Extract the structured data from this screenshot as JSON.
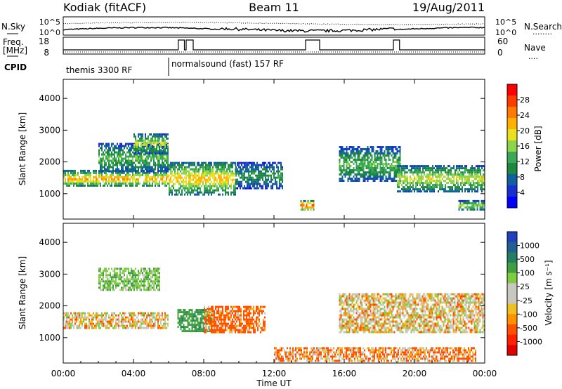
{
  "header": {
    "station": "Kodiak (fitACF)",
    "beam": "Beam 11",
    "date": "19/Aug/2011"
  },
  "summary_panels": {
    "nsky": {
      "label": "N.Sky",
      "ticks": [
        "10^5",
        "10^0"
      ],
      "right_label": "N.Search",
      "right_ticks": [
        "10^5",
        "10^0"
      ],
      "right_legend": "........"
    },
    "freq": {
      "label_line1": "Freq.",
      "label_line2": "[MHz]",
      "ticks": [
        "18",
        "8"
      ],
      "right_label": "Nave",
      "right_ticks": [
        "60",
        "0"
      ],
      "right_legend": "....",
      "pulse_hours": [
        [
          6.55,
          6.9
        ],
        [
          7.0,
          7.4
        ],
        [
          13.8,
          14.6
        ],
        [
          18.8,
          19.15
        ]
      ]
    },
    "cpid": {
      "label": "CPID",
      "modes": [
        {
          "text": "themis 3300 RF",
          "start_hour": 0
        },
        {
          "text": "normalsound (fast) 157 RF",
          "start_hour": 6
        }
      ]
    }
  },
  "chart_data": [
    {
      "type": "heatmap",
      "panel": "power",
      "ylabel": "Slant Range [km]",
      "ylim": [
        200,
        4600
      ],
      "yticks": [
        1000,
        2000,
        3000,
        4000
      ],
      "colorbar": {
        "label": "Power [dB]",
        "ticks": [
          "28",
          "24",
          "20",
          "16",
          "12",
          "8",
          "4"
        ],
        "colors": [
          "#ff0000",
          "#ff3c00",
          "#ff7a00",
          "#ffb000",
          "#e8e020",
          "#8cd448",
          "#3aa858",
          "#1e8840",
          "#1060a0",
          "#1830d0",
          "#0000ff"
        ]
      },
      "regions": [
        {
          "x": [
            0.0,
            6.0
          ],
          "range": [
            1250,
            1750
          ],
          "level": 0.75
        },
        {
          "x": [
            2.0,
            6.0
          ],
          "range": [
            1700,
            2600
          ],
          "level": 0.45
        },
        {
          "x": [
            4.0,
            6.0
          ],
          "range": [
            2300,
            2900
          ],
          "level": 0.6
        },
        {
          "x": [
            6.0,
            9.8
          ],
          "range": [
            1000,
            2000
          ],
          "level": 0.7
        },
        {
          "x": [
            9.8,
            12.5
          ],
          "range": [
            1200,
            2000
          ],
          "level": 0.35
        },
        {
          "x": [
            13.5,
            14.3
          ],
          "range": [
            500,
            800
          ],
          "level": 0.95
        },
        {
          "x": [
            15.7,
            19.2
          ],
          "range": [
            1400,
            2500
          ],
          "level": 0.45
        },
        {
          "x": [
            19.0,
            24.0
          ],
          "range": [
            1100,
            1900
          ],
          "level": 0.6
        },
        {
          "x": [
            22.5,
            24.0
          ],
          "range": [
            500,
            800
          ],
          "level": 0.55
        }
      ]
    },
    {
      "type": "heatmap",
      "panel": "velocity",
      "ylabel": "Slant Range [km]",
      "xlabel": "Time UT",
      "ylim": [
        200,
        4600
      ],
      "yticks": [
        1000,
        2000,
        3000,
        4000
      ],
      "xticks": [
        "00:00",
        "04:00",
        "08:00",
        "12:00",
        "16:00",
        "20:00",
        "00:00"
      ],
      "xtick_hours": [
        0,
        4,
        8,
        12,
        16,
        20,
        24
      ],
      "colorbar": {
        "label": "Velocity [m s⁻¹]",
        "ticks": [
          "1000",
          "500",
          "100",
          "25",
          "-25",
          "-100",
          "-500",
          "-1000"
        ],
        "colors": [
          "#2040c0",
          "#206090",
          "#208060",
          "#40a040",
          "#80cc40",
          "#c8c8c0",
          "#c8c8c0",
          "#f0c020",
          "#ff9000",
          "#ff5000",
          "#ff2000",
          "#e00000"
        ]
      },
      "regions": [
        {
          "x": [
            0.0,
            6.0
          ],
          "range": [
            1300,
            1800
          ],
          "value": 0
        },
        {
          "x": [
            2.0,
            5.5
          ],
          "range": [
            2500,
            3200
          ],
          "value": 200
        },
        {
          "x": [
            6.5,
            8.5
          ],
          "range": [
            1200,
            1900
          ],
          "value": 400
        },
        {
          "x": [
            8.0,
            11.5
          ],
          "range": [
            1200,
            2000
          ],
          "value": -150
        },
        {
          "x": [
            15.7,
            24.0
          ],
          "range": [
            1200,
            2400
          ],
          "value": 0
        },
        {
          "x": [
            12.0,
            23.5
          ],
          "range": [
            300,
            700
          ],
          "value": -80
        }
      ]
    }
  ]
}
